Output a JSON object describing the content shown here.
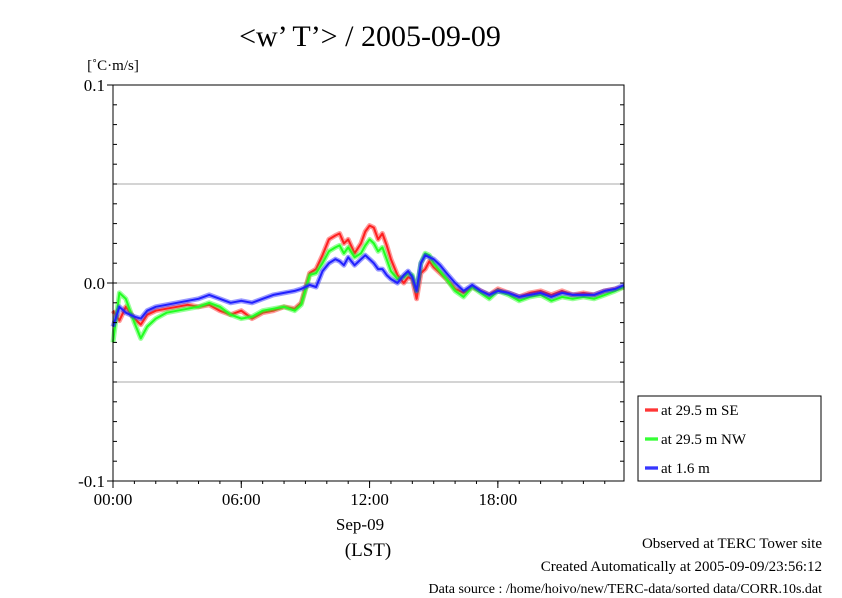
{
  "chart_data": {
    "type": "line",
    "title": "<w’ T’> / 2005-09-09",
    "ylabel": "[˚C·m/s]",
    "ylim": [
      -0.1,
      0.1
    ],
    "yticks": [
      {
        "value": 0.1,
        "label": "0.1"
      },
      {
        "value": 0.0,
        "label": "0.0"
      },
      {
        "value": -0.1,
        "label": "-0.1"
      }
    ],
    "ygrid": [
      0.05,
      -0.05
    ],
    "xlim": [
      0,
      23.9
    ],
    "xticks": [
      {
        "value": 0,
        "label": "00:00"
      },
      {
        "value": 6,
        "label": "06:00"
      },
      {
        "value": 12,
        "label": "12:00"
      },
      {
        "value": 18,
        "label": "18:00"
      }
    ],
    "xlabel_date": "Sep-09",
    "xlabel": "(LST)",
    "grid": true,
    "legend_position": "right",
    "series": [
      {
        "name": "at 29.5 m SE",
        "color": "#ff2020",
        "x": [
          0,
          0.3,
          0.6,
          1.0,
          1.3,
          1.6,
          2.0,
          2.5,
          3.0,
          3.5,
          4.0,
          4.5,
          5.0,
          5.5,
          6.0,
          6.5,
          7.0,
          7.5,
          8.0,
          8.5,
          8.8,
          9.2,
          9.5,
          9.8,
          10.1,
          10.4,
          10.6,
          10.8,
          11.0,
          11.3,
          11.6,
          11.8,
          12.0,
          12.2,
          12.4,
          12.6,
          12.8,
          13.0,
          13.3,
          13.6,
          13.8,
          14.0,
          14.2,
          14.4,
          14.6,
          14.8,
          15.0,
          15.3,
          15.6,
          16.0,
          16.4,
          16.8,
          17.2,
          17.6,
          18.0,
          18.5,
          19.0,
          19.5,
          20.0,
          20.5,
          21.0,
          21.5,
          22.0,
          22.5,
          23.0,
          23.5,
          23.9
        ],
        "values": [
          -0.014,
          -0.019,
          -0.012,
          -0.018,
          -0.021,
          -0.016,
          -0.014,
          -0.013,
          -0.012,
          -0.011,
          -0.012,
          -0.011,
          -0.014,
          -0.016,
          -0.014,
          -0.018,
          -0.015,
          -0.014,
          -0.012,
          -0.013,
          -0.01,
          0.005,
          0.007,
          0.014,
          0.022,
          0.024,
          0.025,
          0.02,
          0.022,
          0.015,
          0.02,
          0.026,
          0.029,
          0.028,
          0.022,
          0.025,
          0.019,
          0.012,
          0.004,
          0.0,
          0.003,
          0.002,
          -0.008,
          0.005,
          0.007,
          0.011,
          0.008,
          0.005,
          0.002,
          -0.003,
          -0.005,
          -0.002,
          -0.004,
          -0.006,
          -0.003,
          -0.005,
          -0.007,
          -0.005,
          -0.004,
          -0.006,
          -0.004,
          -0.006,
          -0.005,
          -0.006,
          -0.004,
          -0.003,
          -0.002
        ]
      },
      {
        "name": "at 29.5 m NW",
        "color": "#20ff20",
        "x": [
          0,
          0.3,
          0.6,
          1.0,
          1.3,
          1.6,
          2.0,
          2.5,
          3.0,
          3.5,
          4.0,
          4.5,
          5.0,
          5.5,
          6.0,
          6.5,
          7.0,
          7.5,
          8.0,
          8.5,
          8.8,
          9.2,
          9.5,
          9.8,
          10.1,
          10.4,
          10.6,
          10.8,
          11.0,
          11.3,
          11.6,
          11.8,
          12.0,
          12.2,
          12.4,
          12.6,
          12.8,
          13.0,
          13.3,
          13.6,
          13.8,
          14.0,
          14.2,
          14.4,
          14.6,
          14.8,
          15.0,
          15.3,
          15.6,
          16.0,
          16.4,
          16.8,
          17.2,
          17.6,
          18.0,
          18.5,
          19.0,
          19.5,
          20.0,
          20.5,
          21.0,
          21.5,
          22.0,
          22.5,
          23.0,
          23.5,
          23.9
        ],
        "values": [
          -0.03,
          -0.005,
          -0.008,
          -0.02,
          -0.028,
          -0.022,
          -0.018,
          -0.015,
          -0.014,
          -0.013,
          -0.012,
          -0.01,
          -0.012,
          -0.016,
          -0.018,
          -0.017,
          -0.014,
          -0.013,
          -0.012,
          -0.014,
          -0.011,
          0.004,
          0.005,
          0.01,
          0.016,
          0.018,
          0.019,
          0.015,
          0.018,
          0.013,
          0.015,
          0.019,
          0.022,
          0.02,
          0.016,
          0.018,
          0.012,
          0.006,
          0.002,
          0.003,
          0.005,
          0.004,
          -0.004,
          0.01,
          0.015,
          0.014,
          0.01,
          0.006,
          0.002,
          -0.004,
          -0.007,
          -0.002,
          -0.005,
          -0.008,
          -0.004,
          -0.006,
          -0.009,
          -0.007,
          -0.006,
          -0.009,
          -0.007,
          -0.008,
          -0.007,
          -0.008,
          -0.006,
          -0.004,
          -0.002
        ]
      },
      {
        "name": "at 1.6 m",
        "color": "#2020ff",
        "x": [
          0,
          0.3,
          0.6,
          1.0,
          1.3,
          1.6,
          2.0,
          2.5,
          3.0,
          3.5,
          4.0,
          4.5,
          5.0,
          5.5,
          6.0,
          6.5,
          7.0,
          7.5,
          8.0,
          8.5,
          8.8,
          9.2,
          9.5,
          9.8,
          10.1,
          10.4,
          10.6,
          10.8,
          11.0,
          11.3,
          11.6,
          11.8,
          12.0,
          12.2,
          12.4,
          12.6,
          12.8,
          13.0,
          13.3,
          13.6,
          13.8,
          14.0,
          14.2,
          14.4,
          14.6,
          14.8,
          15.0,
          15.3,
          15.6,
          16.0,
          16.4,
          16.8,
          17.2,
          17.6,
          18.0,
          18.5,
          19.0,
          19.5,
          20.0,
          20.5,
          21.0,
          21.5,
          22.0,
          22.5,
          23.0,
          23.5,
          23.9
        ],
        "values": [
          -0.022,
          -0.012,
          -0.015,
          -0.017,
          -0.018,
          -0.014,
          -0.012,
          -0.011,
          -0.01,
          -0.009,
          -0.008,
          -0.006,
          -0.008,
          -0.01,
          -0.009,
          -0.01,
          -0.008,
          -0.006,
          -0.005,
          -0.004,
          -0.003,
          -0.001,
          -0.002,
          0.006,
          0.01,
          0.012,
          0.011,
          0.009,
          0.013,
          0.009,
          0.012,
          0.014,
          0.012,
          0.01,
          0.007,
          0.007,
          0.004,
          0.002,
          0.0,
          0.004,
          0.006,
          0.003,
          -0.004,
          0.01,
          0.014,
          0.013,
          0.012,
          0.009,
          0.005,
          0.0,
          -0.004,
          -0.001,
          -0.004,
          -0.006,
          -0.004,
          -0.005,
          -0.007,
          -0.006,
          -0.005,
          -0.007,
          -0.005,
          -0.006,
          -0.006,
          -0.006,
          -0.004,
          -0.003,
          -0.001
        ]
      }
    ]
  },
  "footer": {
    "line1": "Observed at TERC Tower site",
    "line2": "Created Automatically at 2005-09-09/23:56:12",
    "line3": "Data source : /home/hoivo/new/TERC-data/sorted  data/CORR.10s.dat"
  }
}
